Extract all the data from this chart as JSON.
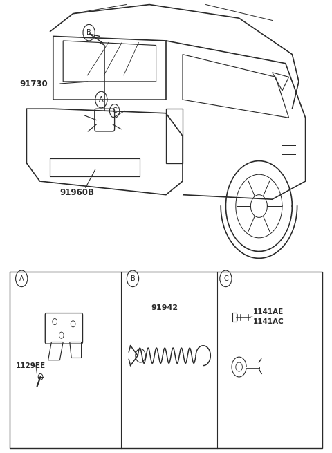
{
  "bg_color": "#ffffff",
  "line_color": "#2a2a2a",
  "fig_width": 4.8,
  "fig_height": 6.55,
  "dpi": 100,
  "labels": {
    "part_91730": "91730",
    "part_91960B": "91960B",
    "part_91942": "91942",
    "part_1129EE": "1129EE",
    "part_1141AE": "1141AE",
    "part_1141AC": "1141AC"
  },
  "callout_A": "A",
  "callout_B": "B",
  "callout_C": "C"
}
